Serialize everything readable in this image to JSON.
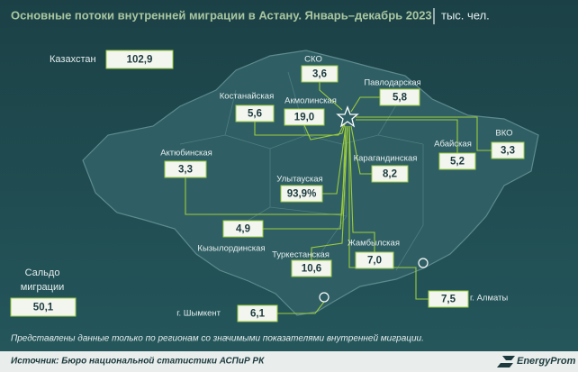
{
  "header": {
    "title": "Основные потоки внутренней миграции в Астану. Январь–декабрь 2023",
    "unit": "тыс. чел."
  },
  "total": {
    "label": "Казахстан",
    "value": "102,9"
  },
  "balance": {
    "label_lines": [
      "Сальдо",
      "миграции"
    ],
    "value": "50,1"
  },
  "regions": [
    {
      "label": "СКО",
      "value": "3,6"
    },
    {
      "label": "Павлодарская",
      "value": "5,8"
    },
    {
      "label": "Костанайская",
      "value": "5,6"
    },
    {
      "label": "Акмолинская",
      "value": "19,0"
    },
    {
      "label": "ВКО",
      "value": "3,3"
    },
    {
      "label": "Абайская",
      "value": "5,2"
    },
    {
      "label": "Актюбинская",
      "value": "3,3"
    },
    {
      "label": "Карагандинская",
      "value": "8,2"
    },
    {
      "label": "Улытауская",
      "value": "93,9%"
    },
    {
      "label": "Кызылординская",
      "value": "4,9"
    },
    {
      "label": "Туркестанская",
      "value": "10,6"
    },
    {
      "label": "Жамбылская",
      "value": "7,0"
    },
    {
      "label": "г. Шымкент",
      "value": "6,1"
    },
    {
      "label": "г. Алматы",
      "value": "7,5"
    }
  ],
  "footer": {
    "note": "Представлены данные только по регионам со значимыми показателями внутренней миграции.",
    "source": "Источник: Бюро национальной статистики АСПиР РК",
    "brand": "EnergyProm"
  }
}
